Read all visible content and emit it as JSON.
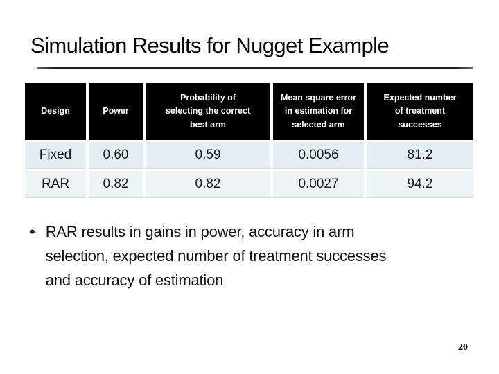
{
  "slide": {
    "title": "Simulation Results for Nugget Example",
    "page_number": "20"
  },
  "table": {
    "headers": [
      "Design",
      "Power",
      "Probability of selecting the correct best arm",
      "Mean square error in estimation for selected arm",
      "Expected number of treatment successes"
    ],
    "rows": [
      [
        "Fixed",
        "0.60",
        "0.59",
        "0.0056",
        "81.2"
      ],
      [
        "RAR",
        "0.82",
        "0.82",
        "0.0027",
        "94.2"
      ]
    ]
  },
  "bullet": {
    "marker": "•",
    "lines": [
      "RAR results in gains in power, accuracy in arm",
      "selection, expected number of treatment successes",
      "and accuracy of estimation"
    ]
  },
  "colors": {
    "header_bg": "#000000",
    "header_text": "#ffffff",
    "row1_bg": "#e4eef2",
    "row2_bg": "#edf4f6",
    "text": "#1a1a1a",
    "divider": "#1c1c1c"
  }
}
